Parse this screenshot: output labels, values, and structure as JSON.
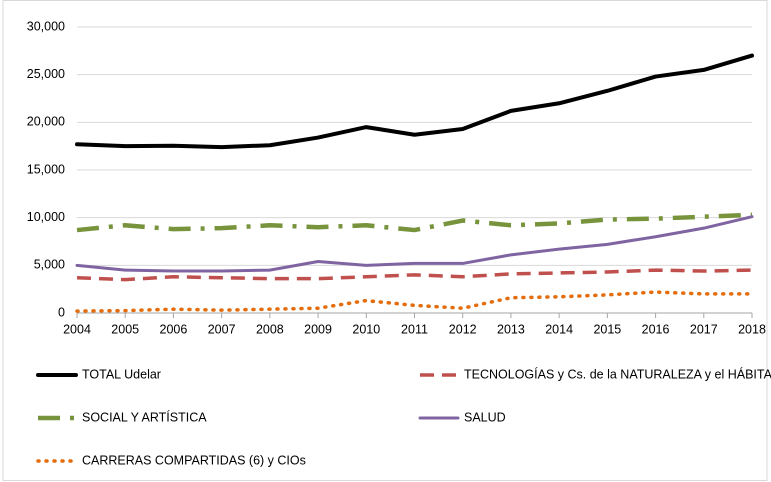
{
  "chart_data": {
    "type": "line",
    "x": [
      2004,
      2005,
      2006,
      2007,
      2008,
      2009,
      2010,
      2011,
      2012,
      2013,
      2014,
      2015,
      2016,
      2017,
      2018
    ],
    "xlim": [
      2004,
      2018
    ],
    "xticks": [
      2004,
      2005,
      2006,
      2007,
      2008,
      2009,
      2010,
      2011,
      2012,
      2013,
      2014,
      2015,
      2016,
      2017,
      2018
    ],
    "ylim": [
      0,
      30000
    ],
    "yticks": [
      0,
      {
        "value": 5000,
        "label": "5,000"
      },
      {
        "value": 10000,
        "label": "10,000"
      },
      {
        "value": 15000,
        "label": "15,000"
      },
      {
        "value": 20000,
        "label": "20,000"
      },
      {
        "value": 25000,
        "label": "25,000"
      },
      {
        "value": 30000,
        "label": "30,000"
      }
    ],
    "grid": true,
    "series": [
      {
        "name": "TOTAL Udelar",
        "color": "#000000",
        "values": [
          17700,
          17500,
          17550,
          17400,
          17600,
          18400,
          19500,
          18700,
          19300,
          21200,
          22000,
          23300,
          24800,
          25500,
          27000
        ]
      },
      {
        "name": "TECNOLOGÍAS y Cs. de la NATURALEZA y el HÁBITAT",
        "color": "#c0504d",
        "values": [
          3700,
          3500,
          3800,
          3700,
          3600,
          3600,
          3800,
          4000,
          3800,
          4100,
          4200,
          4300,
          4500,
          4400,
          4500
        ]
      },
      {
        "name": "SOCIAL Y ARTÍSTICA",
        "color": "#77933c",
        "values": [
          8700,
          9200,
          8800,
          8900,
          9200,
          9000,
          9200,
          8700,
          9700,
          9200,
          9400,
          9800,
          9900,
          10100,
          10300
        ]
      },
      {
        "name": "SALUD",
        "color": "#8064a2",
        "values": [
          5000,
          4500,
          4400,
          4400,
          4500,
          5400,
          5000,
          5200,
          5200,
          6100,
          6700,
          7200,
          8000,
          8900,
          10100
        ]
      },
      {
        "name": "CARRERAS COMPARTIDAS (6) y CIOs",
        "color": "#e46c0a",
        "values": [
          200,
          250,
          400,
          300,
          400,
          500,
          1300,
          800,
          500,
          1600,
          1700,
          1900,
          2200,
          2000,
          2000
        ]
      }
    ]
  }
}
